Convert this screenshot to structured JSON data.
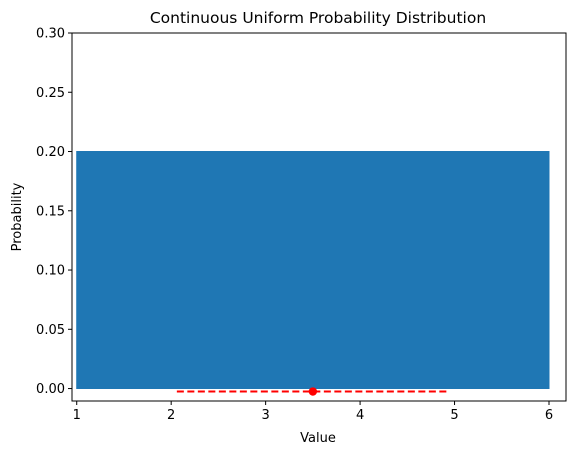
{
  "chart_data": {
    "type": "area",
    "title": "Continuous Uniform Probability Distribution",
    "xlabel": "Value",
    "ylabel": "Probability",
    "xlim": [
      0.95,
      6.18
    ],
    "ylim": [
      -0.0105,
      0.3
    ],
    "xticks": [
      1,
      2,
      3,
      4,
      5,
      6
    ],
    "xtick_labels": [
      "1",
      "2",
      "3",
      "4",
      "5",
      "6"
    ],
    "yticks": [
      0.0,
      0.05,
      0.1,
      0.15,
      0.2,
      0.25,
      0.3
    ],
    "ytick_labels": [
      "0.00",
      "0.05",
      "0.10",
      "0.15",
      "0.20",
      "0.25",
      "0.30"
    ],
    "grid": false,
    "series": [
      {
        "kind": "area",
        "x": [
          1,
          6
        ],
        "y": [
          0.2,
          0.2
        ],
        "color": "#1f77b4"
      },
      {
        "kind": "dashed-line",
        "x": [
          2.06,
          4.94
        ],
        "y": [
          -0.0025,
          -0.0025
        ],
        "color": "#ff0000"
      },
      {
        "kind": "point",
        "x": [
          3.5
        ],
        "y": [
          -0.0025
        ],
        "color": "#ff0000"
      }
    ]
  }
}
